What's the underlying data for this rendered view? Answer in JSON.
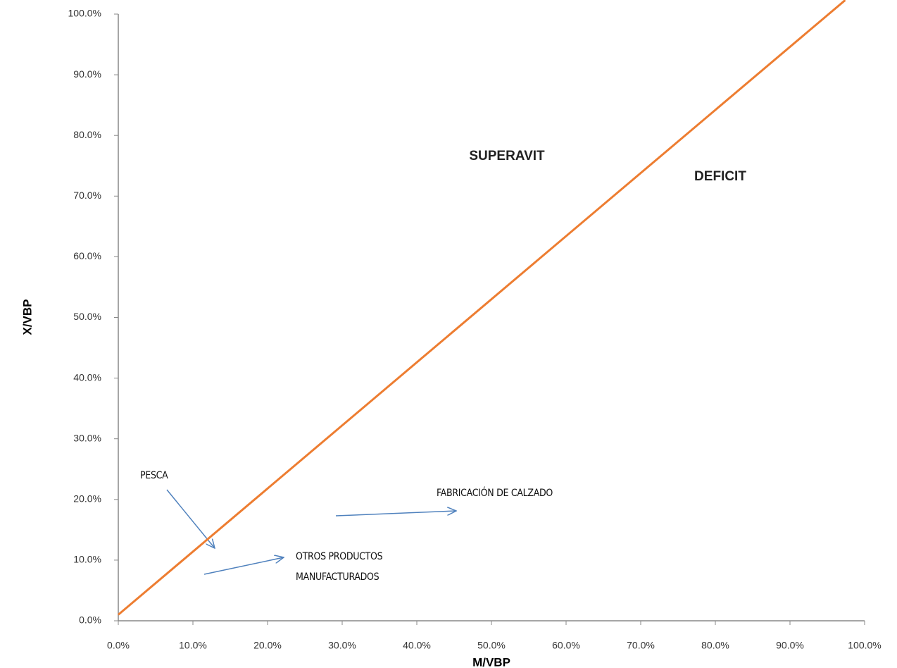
{
  "chart_data": {
    "type": "line",
    "x_label": "M/VBP",
    "y_label": "X/VBP",
    "xlim": [
      0,
      100
    ],
    "ylim": [
      0,
      100
    ],
    "xticks": [
      {
        "value": 0,
        "label": "0.0%"
      },
      {
        "value": 10,
        "label": "10.0%"
      },
      {
        "value": 20,
        "label": "20.0%"
      },
      {
        "value": 30,
        "label": "30.0%"
      },
      {
        "value": 40,
        "label": "40.0%"
      },
      {
        "value": 50,
        "label": "50.0%"
      },
      {
        "value": 60,
        "label": "60.0%"
      },
      {
        "value": 70,
        "label": "70.0%"
      },
      {
        "value": 80,
        "label": "80.0%"
      },
      {
        "value": 90,
        "label": "90.0%"
      },
      {
        "value": 100,
        "label": "100.0%"
      }
    ],
    "yticks": [
      {
        "value": 0,
        "label": "0.0%"
      },
      {
        "value": 10,
        "label": "10.0%"
      },
      {
        "value": 20,
        "label": "20.0%"
      },
      {
        "value": 30,
        "label": "30.0%"
      },
      {
        "value": 40,
        "label": "40.0%"
      },
      {
        "value": 50,
        "label": "50.0%"
      },
      {
        "value": 60,
        "label": "60.0%"
      },
      {
        "value": 70,
        "label": "70.0%"
      },
      {
        "value": 80,
        "label": "80.0%"
      },
      {
        "value": 90,
        "label": "90.0%"
      },
      {
        "value": 100,
        "label": "100.0%"
      }
    ],
    "series": [
      {
        "color": "#ed7d31",
        "x": [
          0,
          97.4
        ],
        "values": [
          1,
          102.3
        ]
      }
    ],
    "regions": [
      "SUPERAVIT",
      "DEFICIT"
    ],
    "annotations": [
      "PESCA",
      "FABRICACIÓN  DE CALZADO",
      "OTROS PRODUCTOS",
      "MANUFACTURADOS"
    ],
    "grid": false
  }
}
